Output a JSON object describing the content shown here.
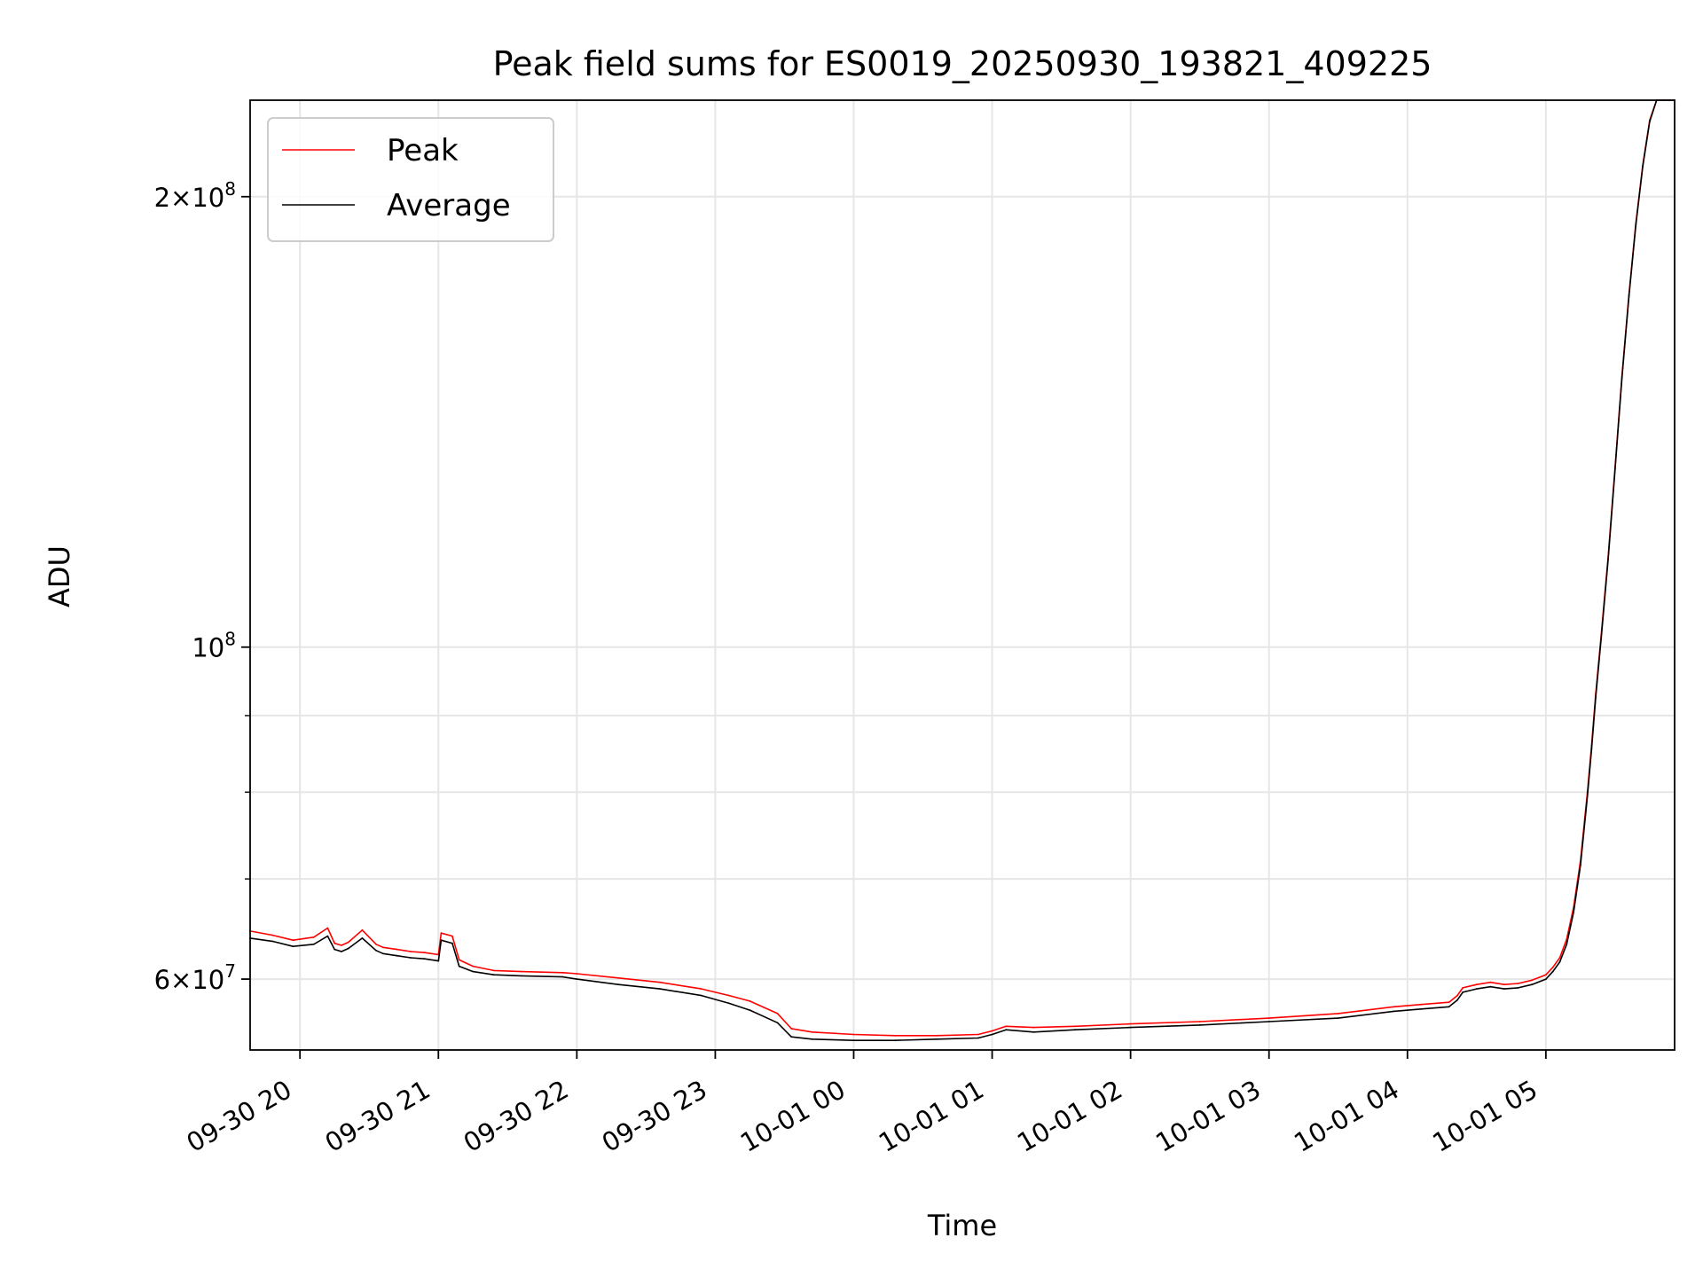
{
  "chart_data": {
    "type": "line",
    "title": "Peak field sums for ES0019_20250930_193821_409225",
    "xlabel": "Time",
    "ylabel": "ADU",
    "yscale": "log",
    "grid": true,
    "legend_position": "top-left",
    "x_unit": "hours since 09-30 19:00",
    "xlim": [
      19.64,
      29.93
    ],
    "ylim": [
      53800000,
      232000000
    ],
    "x_ticks": [
      {
        "x": 20,
        "label": "09-30 20"
      },
      {
        "x": 21,
        "label": "09-30 21"
      },
      {
        "x": 22,
        "label": "09-30 22"
      },
      {
        "x": 23,
        "label": "09-30 23"
      },
      {
        "x": 24,
        "label": "10-01 00"
      },
      {
        "x": 25,
        "label": "10-01 01"
      },
      {
        "x": 26,
        "label": "10-01 02"
      },
      {
        "x": 27,
        "label": "10-01 03"
      },
      {
        "x": 28,
        "label": "10-01 04"
      },
      {
        "x": 29,
        "label": "10-01 05"
      }
    ],
    "y_major_ticks": [
      {
        "y": 60000000,
        "base": "6×10",
        "exp": "7"
      },
      {
        "y": 100000000,
        "base": "10",
        "exp": "8"
      },
      {
        "y": 200000000,
        "base": "2×10",
        "exp": "8"
      }
    ],
    "y_minor_ticks": [
      70000000,
      80000000,
      90000000
    ],
    "series": [
      {
        "name": "Peak",
        "color": "#ff0000",
        "x": [
          19.64,
          19.8,
          19.95,
          20.1,
          20.2,
          20.25,
          20.3,
          20.35,
          20.45,
          20.55,
          20.6,
          20.7,
          20.8,
          20.9,
          21.0,
          21.02,
          21.1,
          21.15,
          21.25,
          21.4,
          21.6,
          21.9,
          22.0,
          22.3,
          22.6,
          22.9,
          23.1,
          23.25,
          23.45,
          23.55,
          23.7,
          24.0,
          24.3,
          24.6,
          24.9,
          25.0,
          25.1,
          25.3,
          25.6,
          26.0,
          26.5,
          27.0,
          27.5,
          27.9,
          28.1,
          28.3,
          28.36,
          28.4,
          28.5,
          28.6,
          28.7,
          28.8,
          28.9,
          29.0,
          29.05,
          29.1,
          29.15,
          29.2,
          29.25,
          29.3,
          29.33,
          29.36,
          29.4,
          29.45,
          29.5,
          29.55,
          29.6,
          29.65,
          29.7,
          29.75,
          29.8,
          29.85,
          29.9,
          29.93
        ],
        "values": [
          64600000,
          64200000,
          63700000,
          64000000,
          64900000,
          63400000,
          63200000,
          63500000,
          64700000,
          63300000,
          63000000,
          62800000,
          62600000,
          62500000,
          62300000,
          64400000,
          64100000,
          61800000,
          61200000,
          60800000,
          60700000,
          60600000,
          60500000,
          60100000,
          59700000,
          59100000,
          58500000,
          58000000,
          56900000,
          55600000,
          55300000,
          55100000,
          55000000,
          55000000,
          55100000,
          55400000,
          55800000,
          55700000,
          55800000,
          56000000,
          56200000,
          56500000,
          56900000,
          57500000,
          57700000,
          57900000,
          58500000,
          59200000,
          59500000,
          59700000,
          59500000,
          59600000,
          59900000,
          60400000,
          61100000,
          62000000,
          63800000,
          67000000,
          72000000,
          80000000,
          86000000,
          93000000,
          102000000,
          115000000,
          132000000,
          152000000,
          172000000,
          192000000,
          210000000,
          225000000,
          232000000,
          232000000,
          232000000,
          232000000
        ]
      },
      {
        "name": "Average",
        "color": "#000000",
        "x": [
          19.64,
          19.8,
          19.95,
          20.1,
          20.2,
          20.25,
          20.3,
          20.35,
          20.45,
          20.55,
          20.6,
          20.7,
          20.8,
          20.9,
          21.0,
          21.02,
          21.1,
          21.15,
          21.25,
          21.4,
          21.6,
          21.9,
          22.0,
          22.3,
          22.6,
          22.9,
          23.1,
          23.25,
          23.45,
          23.55,
          23.7,
          24.0,
          24.3,
          24.6,
          24.9,
          25.0,
          25.1,
          25.3,
          25.6,
          26.0,
          26.5,
          27.0,
          27.5,
          27.9,
          28.1,
          28.3,
          28.36,
          28.4,
          28.5,
          28.6,
          28.7,
          28.8,
          28.9,
          29.0,
          29.05,
          29.1,
          29.15,
          29.2,
          29.25,
          29.3,
          29.33,
          29.36,
          29.4,
          29.45,
          29.5,
          29.55,
          29.6,
          29.65,
          29.7,
          29.75,
          29.8,
          29.85,
          29.9,
          29.93
        ],
        "values": [
          63900000,
          63600000,
          63100000,
          63300000,
          64100000,
          62800000,
          62600000,
          62900000,
          63900000,
          62700000,
          62400000,
          62200000,
          62000000,
          61900000,
          61700000,
          63700000,
          63400000,
          61200000,
          60700000,
          60400000,
          60300000,
          60200000,
          60000000,
          59500000,
          59100000,
          58500000,
          57800000,
          57200000,
          56100000,
          54900000,
          54700000,
          54600000,
          54600000,
          54700000,
          54800000,
          55100000,
          55500000,
          55300000,
          55500000,
          55700000,
          55900000,
          56200000,
          56500000,
          57100000,
          57300000,
          57500000,
          58100000,
          58800000,
          59100000,
          59300000,
          59100000,
          59200000,
          59500000,
          60000000,
          60700000,
          61600000,
          63300000,
          66500000,
          71500000,
          79500000,
          85500000,
          92500000,
          101500000,
          114500000,
          131500000,
          151500000,
          171500000,
          191500000,
          209500000,
          224500000,
          232000000,
          232000000,
          232000000,
          232000000
        ]
      }
    ]
  }
}
